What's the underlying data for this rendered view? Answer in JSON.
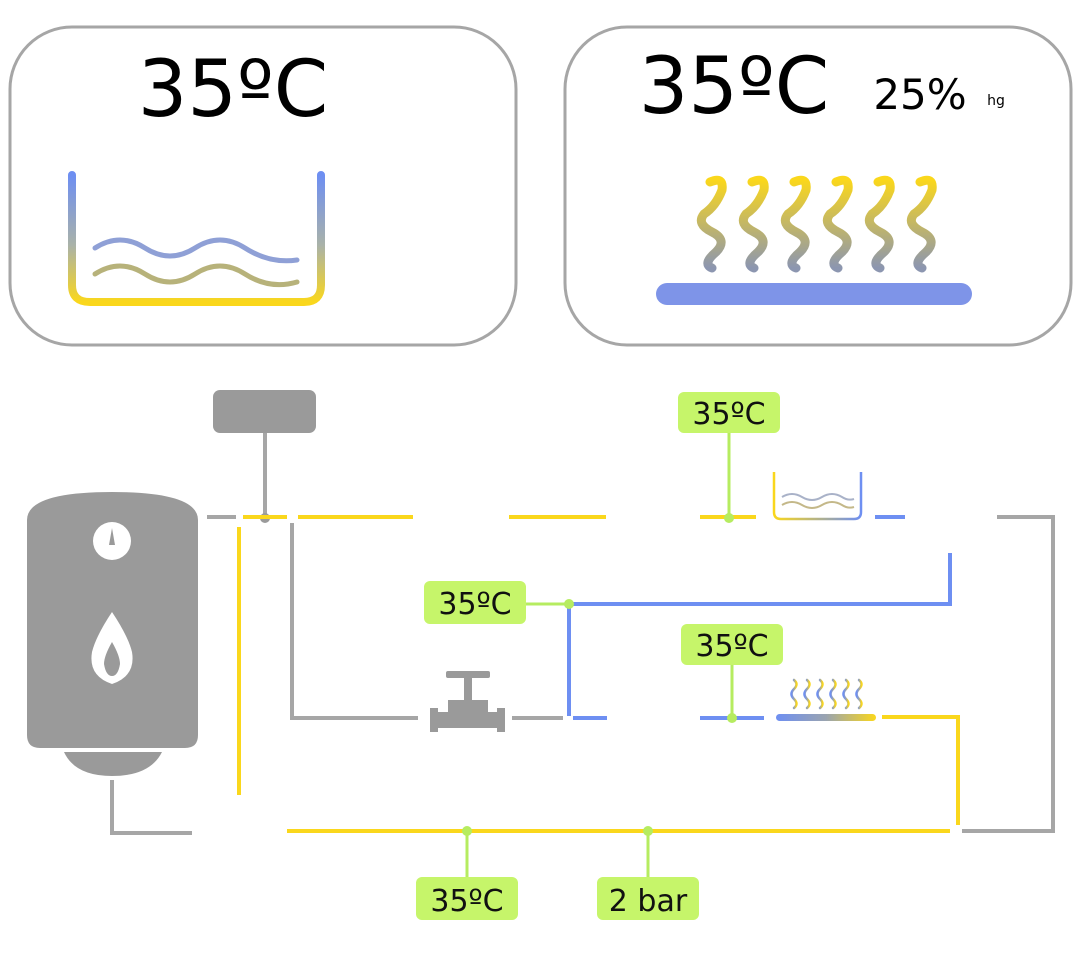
{
  "panels": {
    "water_temp": "35ºC",
    "air_temp": "35ºC",
    "humidity_value": "25%",
    "humidity_unit": "hg"
  },
  "tags": {
    "top_temp": "35ºC",
    "mid_left_temp": "35ºC",
    "mid_right_temp": "35ºC",
    "bottom_temp": "35ºC",
    "bottom_pressure": "2 bar"
  },
  "colors": {
    "hot_pipe": "#fad71c",
    "cold_pipe": "#6e8ff2",
    "neutral_pipe": "#a6a6a6",
    "tag_fill": "#c6f56a",
    "tag_line": "#b6ec60",
    "tank": "#9a9a9a",
    "panel_border": "#a6a6a6"
  },
  "icons": {
    "water_tank": "boiler-tank-icon",
    "gauge": "gauge-icon",
    "flame": "flame-icon",
    "valve": "valve-icon",
    "tub": "bathtub-icon",
    "heater": "floor-heating-icon",
    "controller": "controller-box-icon"
  }
}
